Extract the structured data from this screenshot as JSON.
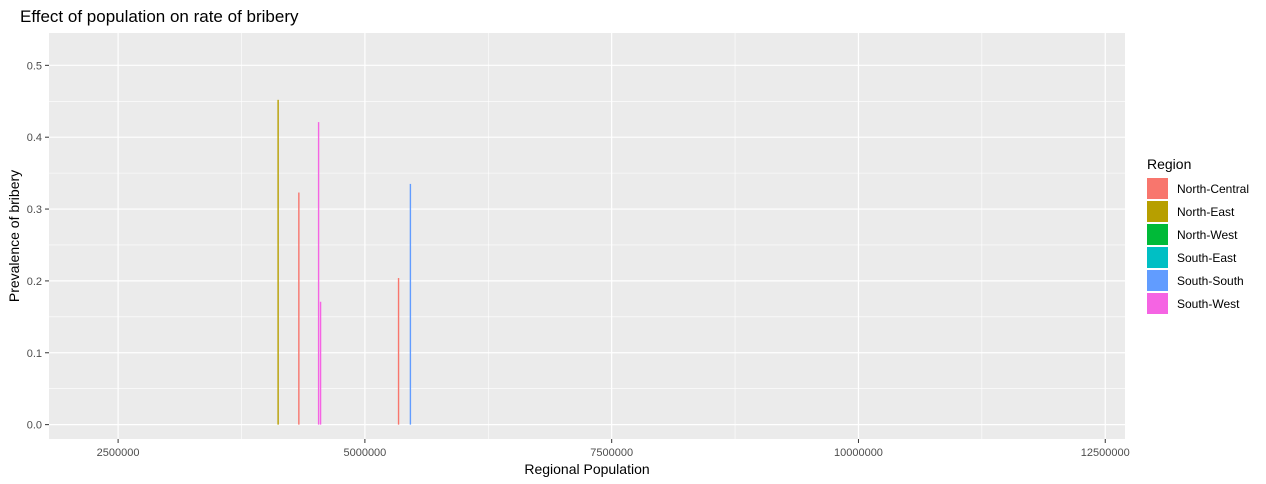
{
  "chart_data": {
    "type": "bar",
    "title": "Effect of population on rate of bribery",
    "xlabel": "Regional Population",
    "ylabel": "Prevalence of bribery",
    "xlim": [
      1800000,
      12700000
    ],
    "ylim": [
      -0.02,
      0.545
    ],
    "x_ticks": [
      2500000,
      5000000,
      7500000,
      10000000,
      12500000
    ],
    "x_tick_labels": [
      "2500000",
      "5000000",
      "7500000",
      "10000000",
      "12500000"
    ],
    "y_ticks": [
      0.0,
      0.1,
      0.2,
      0.3,
      0.4,
      0.5
    ],
    "y_tick_labels": [
      "0.0",
      "0.1",
      "0.2",
      "0.3",
      "0.4",
      "0.5"
    ],
    "grid": true,
    "legend": {
      "title": "Region",
      "position": "right",
      "entries": [
        {
          "name": "North-Central",
          "color": "#F8766D"
        },
        {
          "name": "North-East",
          "color": "#B79F00"
        },
        {
          "name": "North-West",
          "color": "#00BA38"
        },
        {
          "name": "South-East",
          "color": "#00BFC4"
        },
        {
          "name": "South-South",
          "color": "#619CFF"
        },
        {
          "name": "South-West",
          "color": "#F564E3"
        }
      ]
    },
    "bars": [
      {
        "region": "North-East",
        "population": 4120000,
        "value": 0.452
      },
      {
        "region": "North-Central",
        "population": 4330000,
        "value": 0.323
      },
      {
        "region": "South-West",
        "population": 4530000,
        "value": 0.421
      },
      {
        "region": "South-West",
        "population": 4550000,
        "value": 0.171
      },
      {
        "region": "North-Central",
        "population": 5340000,
        "value": 0.204
      },
      {
        "region": "South-South",
        "population": 5460000,
        "value": 0.335
      }
    ]
  }
}
